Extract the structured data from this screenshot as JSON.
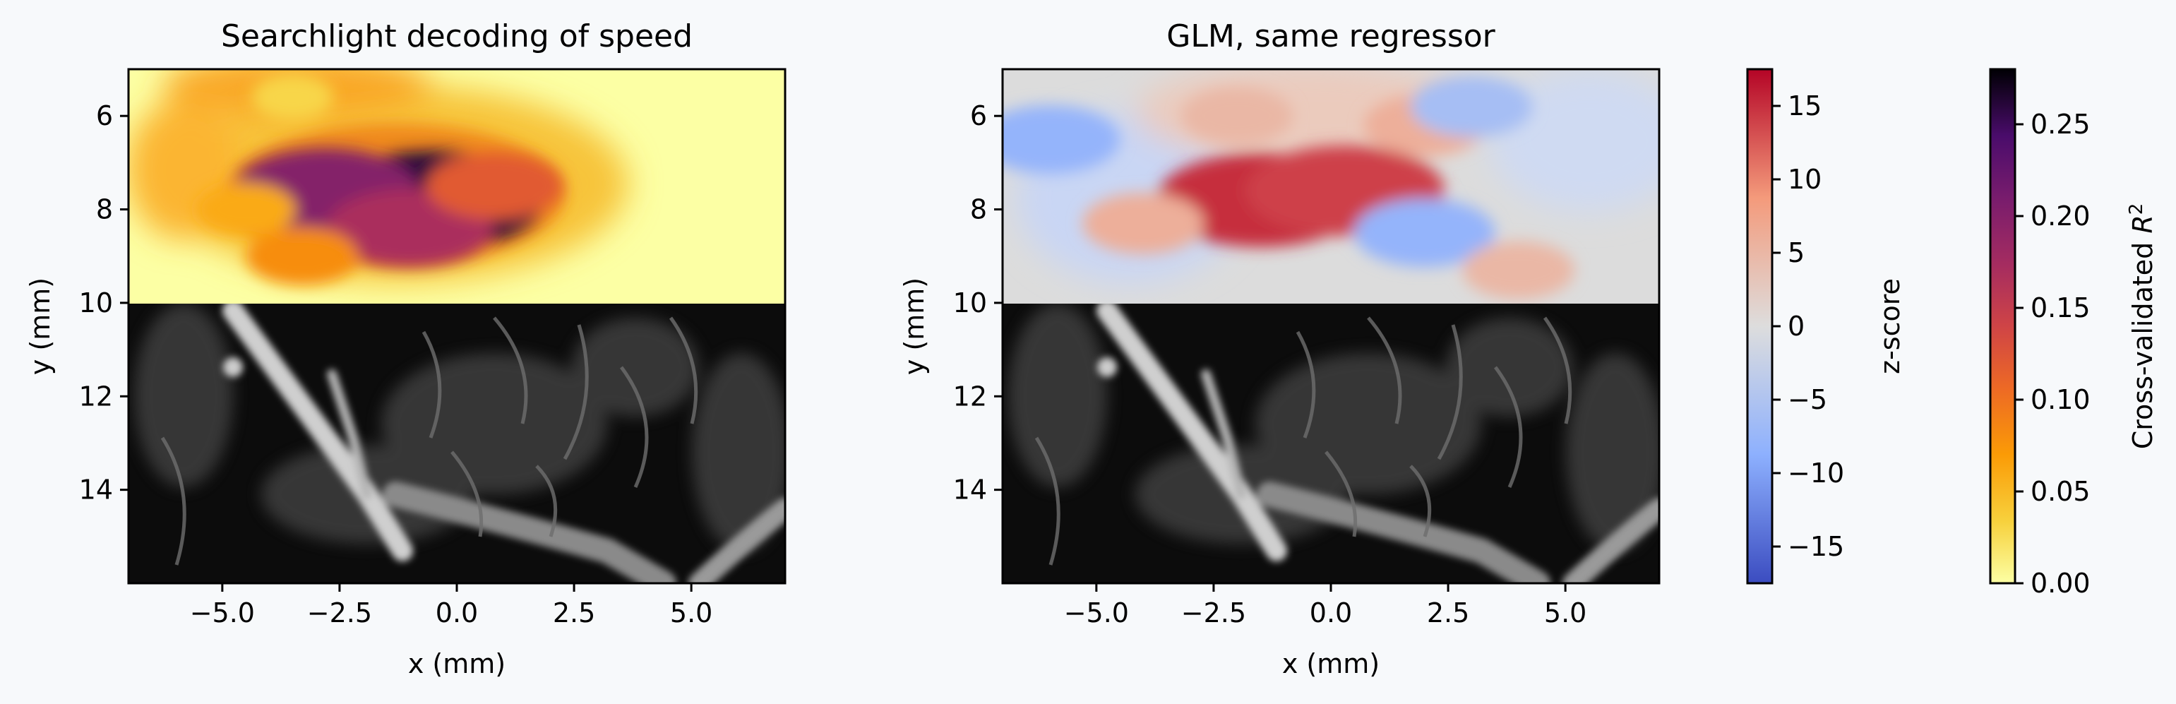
{
  "chart_data": [
    {
      "type": "heatmap",
      "title": "Searchlight decoding of speed",
      "xlabel": "x (mm)",
      "ylabel": "y (mm)",
      "xlim": [
        -7,
        7
      ],
      "ylim": [
        16,
        5
      ],
      "xticks": [
        -5.0,
        -2.5,
        0.0,
        2.5,
        5.0
      ],
      "xtick_labels": [
        "−5.0",
        "−2.5",
        "0.0",
        "2.5",
        "5.0"
      ],
      "yticks": [
        6,
        8,
        10,
        12,
        14
      ],
      "ytick_labels": [
        "6",
        "8",
        "10",
        "12",
        "14"
      ],
      "overlay_y_range": [
        5,
        10
      ],
      "underlay": "grayscale vascular (Doppler) image",
      "colormap": "inferno_r",
      "color_range": [
        0.0,
        0.28
      ],
      "hotspots": [
        {
          "x": -0.5,
          "y": 7.8,
          "value": 0.26
        },
        {
          "x": -2.8,
          "y": 7.6,
          "value": 0.2
        },
        {
          "x": -1.0,
          "y": 8.4,
          "value": 0.17
        },
        {
          "x": 0.8,
          "y": 7.5,
          "value": 0.12
        },
        {
          "x": -3.3,
          "y": 9.0,
          "value": 0.08
        },
        {
          "x": -4.5,
          "y": 8.0,
          "value": 0.06
        },
        {
          "x": -3.5,
          "y": 5.6,
          "value": 0.03
        }
      ]
    },
    {
      "type": "heatmap",
      "title": "GLM, same regressor",
      "xlabel": "x (mm)",
      "ylabel": "y (mm)",
      "xlim": [
        -7,
        7
      ],
      "ylim": [
        16,
        5
      ],
      "xticks": [
        -5.0,
        -2.5,
        0.0,
        2.5,
        5.0
      ],
      "xtick_labels": [
        "−5.0",
        "−2.5",
        "0.0",
        "2.5",
        "5.0"
      ],
      "yticks": [
        6,
        8,
        10,
        12,
        14
      ],
      "ytick_labels": [
        "6",
        "8",
        "10",
        "12",
        "14"
      ],
      "overlay_y_range": [
        5,
        10
      ],
      "underlay": "grayscale vascular (Doppler) image",
      "colormap": "coolwarm",
      "color_range": [
        -17.5,
        17.5
      ],
      "hotspots": [
        {
          "x": -1.5,
          "y": 7.8,
          "value": 15
        },
        {
          "x": 0.3,
          "y": 7.6,
          "value": 14
        },
        {
          "x": -4.0,
          "y": 8.3,
          "value": 6
        },
        {
          "x": -2.0,
          "y": 6.0,
          "value": 5
        },
        {
          "x": 2.0,
          "y": 6.2,
          "value": 6
        },
        {
          "x": 2.0,
          "y": 8.5,
          "value": -8
        },
        {
          "x": 3.0,
          "y": 5.8,
          "value": -6
        },
        {
          "x": -6.0,
          "y": 6.5,
          "value": -8
        },
        {
          "x": 4.0,
          "y": 9.3,
          "value": 5
        }
      ]
    }
  ],
  "colorbars": [
    {
      "label": "z-score",
      "range": [
        -17.5,
        17.5
      ],
      "ticks": [
        15,
        10,
        5,
        0,
        -5,
        -10,
        -15
      ],
      "tick_labels": [
        "15",
        "10",
        "5",
        "0",
        "−5",
        "−10",
        "−15"
      ],
      "colormap": "coolwarm"
    },
    {
      "label_text": "Cross-validated ",
      "label_var": "R",
      "label_sup": "2",
      "range": [
        0.0,
        0.28
      ],
      "ticks": [
        0.25,
        0.2,
        0.15,
        0.1,
        0.05,
        0.0
      ],
      "tick_labels": [
        "0.25",
        "0.20",
        "0.15",
        "0.10",
        "0.05",
        "0.00"
      ],
      "colormap": "inferno_r"
    }
  ],
  "colors": {
    "background": "#f7f9fb",
    "overlay_zero": "#fcffa4",
    "coolwarm_low": "#3b4cc0",
    "coolwarm_mid": "#dddddd",
    "coolwarm_high": "#b40426"
  }
}
